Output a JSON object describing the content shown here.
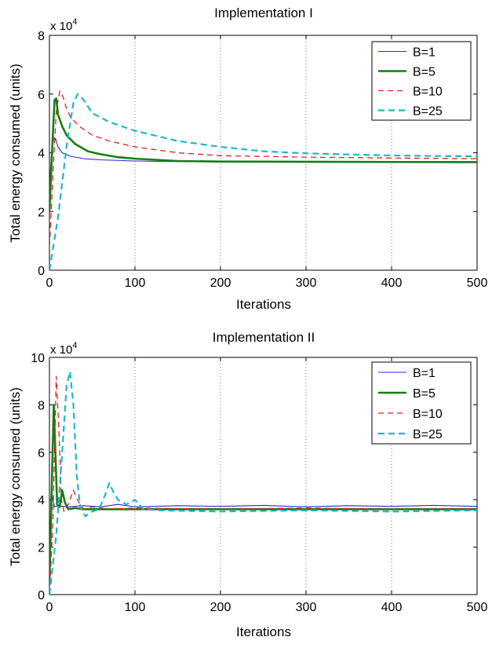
{
  "chart_data": [
    {
      "type": "line",
      "title": "Implementation I",
      "xlabel": "Iterations",
      "ylabel": "Total energy consumed (units)",
      "exponent_label": "x 10",
      "exponent_power": "4",
      "xlim": [
        0,
        500
      ],
      "ylim": [
        0,
        8
      ],
      "xticks": [
        "0",
        "100",
        "200",
        "300",
        "400",
        "500"
      ],
      "yticks": [
        "0",
        "2",
        "4",
        "6",
        "8"
      ],
      "grid": "vertical dotted at x ticks",
      "legend_position": "top-right",
      "series": [
        {
          "name": "B=1",
          "color": "#2a2ad6",
          "style": "solid",
          "width": 1.1,
          "points": [
            [
              0,
              2.8
            ],
            [
              2,
              3.8
            ],
            [
              5,
              4.5
            ],
            [
              7,
              4.5
            ],
            [
              10,
              4.2
            ],
            [
              15,
              4.0
            ],
            [
              25,
              3.88
            ],
            [
              40,
              3.8
            ],
            [
              60,
              3.76
            ],
            [
              100,
              3.72
            ],
            [
              150,
              3.7
            ],
            [
              250,
              3.7
            ],
            [
              500,
              3.7
            ]
          ]
        },
        {
          "name": "B=5",
          "color": "#128012",
          "style": "solid",
          "width": 2.6,
          "points": [
            [
              0,
              2.0
            ],
            [
              3,
              4.0
            ],
            [
              6,
              5.8
            ],
            [
              8,
              5.85
            ],
            [
              10,
              5.3
            ],
            [
              15,
              4.9
            ],
            [
              20,
              4.6
            ],
            [
              30,
              4.3
            ],
            [
              45,
              4.05
            ],
            [
              60,
              3.95
            ],
            [
              80,
              3.85
            ],
            [
              100,
              3.8
            ],
            [
              150,
              3.72
            ],
            [
              200,
              3.7
            ],
            [
              500,
              3.68
            ]
          ]
        },
        {
          "name": "B=10",
          "color": "#dd2222",
          "style": "dash",
          "width": 1.3,
          "points": [
            [
              0,
              0.8
            ],
            [
              4,
              3.2
            ],
            [
              8,
              5.4
            ],
            [
              12,
              6.1
            ],
            [
              16,
              5.9
            ],
            [
              20,
              5.5
            ],
            [
              25,
              5.2
            ],
            [
              35,
              4.9
            ],
            [
              50,
              4.6
            ],
            [
              70,
              4.4
            ],
            [
              100,
              4.2
            ],
            [
              150,
              4.0
            ],
            [
              200,
              3.9
            ],
            [
              300,
              3.85
            ],
            [
              400,
              3.82
            ],
            [
              500,
              3.8
            ]
          ]
        },
        {
          "name": "B=25",
          "color": "#1cb8c8",
          "style": "dash",
          "width": 2.2,
          "points": [
            [
              0,
              0
            ],
            [
              10,
              1.8
            ],
            [
              20,
              4.2
            ],
            [
              28,
              5.7
            ],
            [
              33,
              6.0
            ],
            [
              40,
              5.8
            ],
            [
              50,
              5.35
            ],
            [
              70,
              5.05
            ],
            [
              100,
              4.75
            ],
            [
              150,
              4.4
            ],
            [
              200,
              4.2
            ],
            [
              250,
              4.05
            ],
            [
              300,
              3.98
            ],
            [
              350,
              3.94
            ],
            [
              400,
              3.91
            ],
            [
              450,
              3.89
            ],
            [
              500,
              3.88
            ]
          ]
        }
      ]
    },
    {
      "type": "line",
      "title": "Implementation II",
      "xlabel": "Iterations",
      "ylabel": "Total energy consumed (units)",
      "exponent_label": "x 10",
      "exponent_power": "4",
      "xlim": [
        0,
        500
      ],
      "ylim": [
        0,
        10
      ],
      "xticks": [
        "0",
        "100",
        "200",
        "300",
        "400",
        "500"
      ],
      "yticks": [
        "0",
        "2",
        "4",
        "6",
        "8",
        "10"
      ],
      "grid": "vertical dotted at x ticks",
      "legend_position": "top-right",
      "series": [
        {
          "name": "B=1",
          "color": "#2a2ad6",
          "style": "solid",
          "width": 1.1,
          "points": [
            [
              0,
              1.0
            ],
            [
              2,
              4.4
            ],
            [
              4,
              4.0
            ],
            [
              6,
              3.7
            ],
            [
              10,
              3.75
            ],
            [
              20,
              3.7
            ],
            [
              40,
              3.75
            ],
            [
              60,
              3.7
            ],
            [
              80,
              3.8
            ],
            [
              100,
              3.7
            ],
            [
              150,
              3.75
            ],
            [
              200,
              3.72
            ],
            [
              250,
              3.76
            ],
            [
              300,
              3.7
            ],
            [
              350,
              3.75
            ],
            [
              400,
              3.72
            ],
            [
              450,
              3.76
            ],
            [
              500,
              3.72
            ]
          ]
        },
        {
          "name": "B=5",
          "color": "#128012",
          "style": "solid",
          "width": 2.6,
          "points": [
            [
              0,
              0.5
            ],
            [
              3,
              5.0
            ],
            [
              5,
              8.0
            ],
            [
              7,
              6.0
            ],
            [
              9,
              3.8
            ],
            [
              12,
              3.7
            ],
            [
              15,
              4.4
            ],
            [
              18,
              3.9
            ],
            [
              22,
              3.6
            ],
            [
              30,
              3.65
            ],
            [
              40,
              3.6
            ],
            [
              60,
              3.6
            ],
            [
              100,
              3.6
            ],
            [
              200,
              3.6
            ],
            [
              300,
              3.6
            ],
            [
              400,
              3.6
            ],
            [
              500,
              3.6
            ]
          ]
        },
        {
          "name": "B=10",
          "color": "#dd2222",
          "style": "dash",
          "width": 1.3,
          "points": [
            [
              0,
              0
            ],
            [
              4,
              3.0
            ],
            [
              8,
              9.2
            ],
            [
              11,
              7.0
            ],
            [
              14,
              4.0
            ],
            [
              17,
              3.5
            ],
            [
              22,
              3.8
            ],
            [
              28,
              4.4
            ],
            [
              34,
              3.9
            ],
            [
              40,
              3.6
            ],
            [
              50,
              3.7
            ],
            [
              70,
              3.6
            ],
            [
              100,
              3.65
            ],
            [
              200,
              3.6
            ],
            [
              300,
              3.65
            ],
            [
              400,
              3.6
            ],
            [
              500,
              3.62
            ]
          ]
        },
        {
          "name": "B=25",
          "color": "#1cb8c8",
          "style": "dash",
          "width": 2.2,
          "points": [
            [
              0,
              0
            ],
            [
              8,
              2.5
            ],
            [
              15,
              6.0
            ],
            [
              20,
              8.8
            ],
            [
              24,
              9.4
            ],
            [
              28,
              8.0
            ],
            [
              32,
              5.0
            ],
            [
              36,
              3.7
            ],
            [
              42,
              3.3
            ],
            [
              50,
              3.5
            ],
            [
              58,
              3.6
            ],
            [
              65,
              4.2
            ],
            [
              70,
              4.7
            ],
            [
              75,
              4.3
            ],
            [
              80,
              4.0
            ],
            [
              90,
              3.8
            ],
            [
              100,
              4.0
            ],
            [
              110,
              3.6
            ],
            [
              130,
              3.55
            ],
            [
              200,
              3.5
            ],
            [
              300,
              3.55
            ],
            [
              400,
              3.5
            ],
            [
              500,
              3.55
            ]
          ]
        }
      ]
    }
  ]
}
